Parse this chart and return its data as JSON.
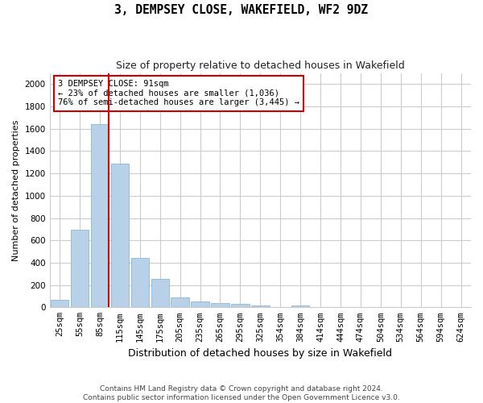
{
  "title": "3, DEMPSEY CLOSE, WAKEFIELD, WF2 9DZ",
  "subtitle": "Size of property relative to detached houses in Wakefield",
  "xlabel": "Distribution of detached houses by size in Wakefield",
  "ylabel": "Number of detached properties",
  "categories": [
    "25sqm",
    "55sqm",
    "85sqm",
    "115sqm",
    "145sqm",
    "175sqm",
    "205sqm",
    "235sqm",
    "265sqm",
    "295sqm",
    "325sqm",
    "354sqm",
    "384sqm",
    "414sqm",
    "444sqm",
    "474sqm",
    "504sqm",
    "534sqm",
    "564sqm",
    "594sqm",
    "624sqm"
  ],
  "values": [
    65,
    695,
    1640,
    1285,
    445,
    255,
    88,
    55,
    38,
    28,
    18,
    0,
    18,
    0,
    0,
    0,
    0,
    0,
    0,
    0,
    0
  ],
  "bar_color": "#b8d0e8",
  "bar_edge_color": "#7aafd4",
  "vline_color": "#cc0000",
  "annotation_text": "3 DEMPSEY CLOSE: 91sqm\n← 23% of detached houses are smaller (1,036)\n76% of semi-detached houses are larger (3,445) →",
  "annotation_box_color": "#ffffff",
  "annotation_box_edge_color": "#cc0000",
  "ylim": [
    0,
    2100
  ],
  "yticks": [
    0,
    200,
    400,
    600,
    800,
    1000,
    1200,
    1400,
    1600,
    1800,
    2000
  ],
  "grid_color": "#cccccc",
  "footer_line1": "Contains HM Land Registry data © Crown copyright and database right 2024.",
  "footer_line2": "Contains public sector information licensed under the Open Government Licence v3.0.",
  "bg_color": "#ffffff",
  "fig_width": 6.0,
  "fig_height": 5.0,
  "title_fontsize": 10.5,
  "subtitle_fontsize": 9,
  "ylabel_fontsize": 8,
  "xlabel_fontsize": 9,
  "tick_fontsize": 7.5,
  "annotation_fontsize": 7.5
}
